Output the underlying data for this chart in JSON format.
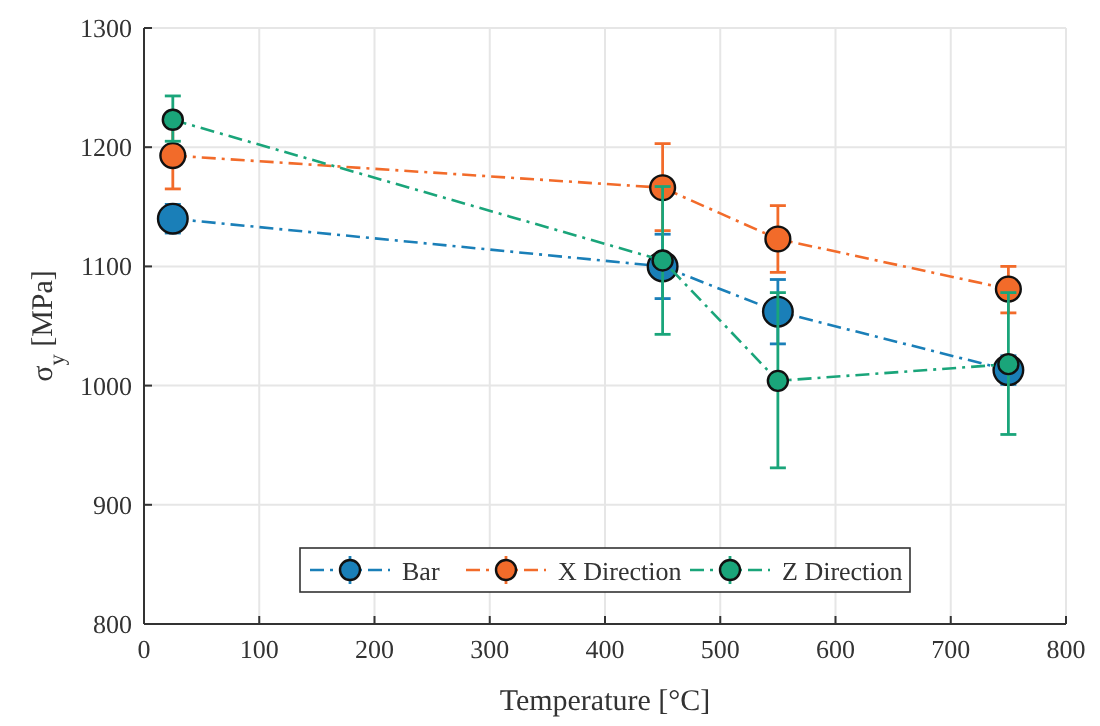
{
  "chart_data": {
    "type": "line",
    "xlabel": "Temperature [°C]",
    "ylabel": "σ$_{y}$ [MPa]",
    "x": [
      25,
      450,
      550,
      750
    ],
    "series": [
      {
        "name": "Bar",
        "color": "#1a7fb8",
        "values": [
          1140,
          1100,
          1062,
          1013
        ],
        "errors": [
          12,
          27,
          27,
          12
        ]
      },
      {
        "name": "X Direction",
        "color": "#f26b2a",
        "values": [
          1193,
          1166,
          1123,
          1081
        ],
        "errors": [
          [
            1165,
            1223
          ],
          [
            1130,
            1203
          ],
          [
            1095,
            1151
          ],
          [
            1061,
            1100
          ]
        ]
      },
      {
        "name": "Z Direction",
        "color": "#1aa57a",
        "values": [
          1223,
          1105,
          1004,
          1018
        ],
        "errors": [
          [
            1205,
            1243
          ],
          [
            1043,
            1167
          ],
          [
            931,
            1078
          ],
          [
            959,
            1078
          ]
        ]
      }
    ],
    "xlim": [
      0,
      800
    ],
    "xticks": [
      0,
      100,
      200,
      300,
      400,
      500,
      600,
      700,
      800
    ],
    "ylim": [
      800,
      1300
    ],
    "yticks": [
      800,
      900,
      1000,
      1100,
      1200,
      1300
    ],
    "grid": true,
    "legend": "bottom",
    "marker": "circle",
    "line_style": "dashed"
  }
}
